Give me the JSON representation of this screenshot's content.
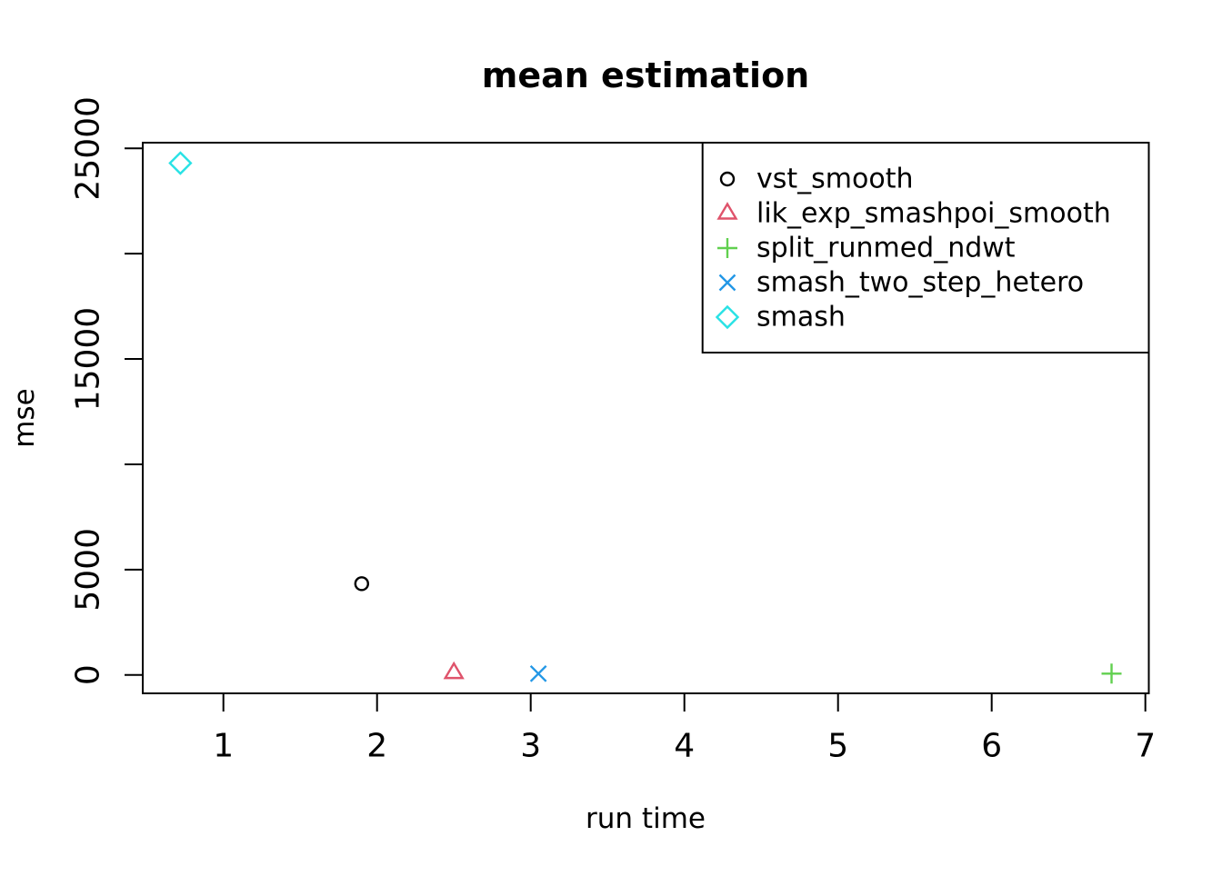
{
  "title": "mean estimation",
  "axes": {
    "x_label": "run time",
    "y_label": "mse"
  },
  "legend": {
    "position": "topright",
    "items": [
      {
        "label": "vst_smooth",
        "marker": "open-circle",
        "color": "#000000"
      },
      {
        "label": "lik_exp_smashpoi_smooth",
        "marker": "open-triangle",
        "color": "#DF536B"
      },
      {
        "label": "split_runmed_ndwt",
        "marker": "plus",
        "color": "#61D04F"
      },
      {
        "label": "smash_two_step_hetero",
        "marker": "x",
        "color": "#2297E6"
      },
      {
        "label": "smash",
        "marker": "open-diamond",
        "color": "#28E2E5"
      }
    ]
  },
  "chart_data": {
    "type": "scatter",
    "title": "mean estimation",
    "xlabel": "run time",
    "ylabel": "mse",
    "xlim": [
      0.47,
      7.02
    ],
    "ylim": [
      -900,
      25300
    ],
    "grid": false,
    "legend_position": "topright",
    "x_ticks": [
      1,
      2,
      3,
      4,
      5,
      6,
      7
    ],
    "x_tick_labels": [
      "1",
      "2",
      "3",
      "4",
      "5",
      "6",
      "7"
    ],
    "y_ticks": [
      0,
      5000,
      10000,
      15000,
      20000,
      25000
    ],
    "y_tick_labels": [
      "0",
      "5000",
      "",
      "15000",
      "",
      "25000"
    ],
    "series": [
      {
        "name": "vst_smooth",
        "marker": "open-circle",
        "color": "#000000",
        "points": [
          {
            "x": 1.9,
            "y": 4330
          }
        ]
      },
      {
        "name": "lik_exp_smashpoi_smooth",
        "marker": "open-triangle",
        "color": "#DF536B",
        "points": [
          {
            "x": 2.5,
            "y": 90
          }
        ]
      },
      {
        "name": "split_runmed_ndwt",
        "marker": "plus",
        "color": "#61D04F",
        "points": [
          {
            "x": 6.78,
            "y": 60
          }
        ]
      },
      {
        "name": "smash_two_step_hetero",
        "marker": "x",
        "color": "#2297E6",
        "points": [
          {
            "x": 3.05,
            "y": 60
          }
        ]
      },
      {
        "name": "smash",
        "marker": "open-diamond",
        "color": "#28E2E5",
        "points": [
          {
            "x": 0.72,
            "y": 24300
          }
        ]
      }
    ]
  }
}
